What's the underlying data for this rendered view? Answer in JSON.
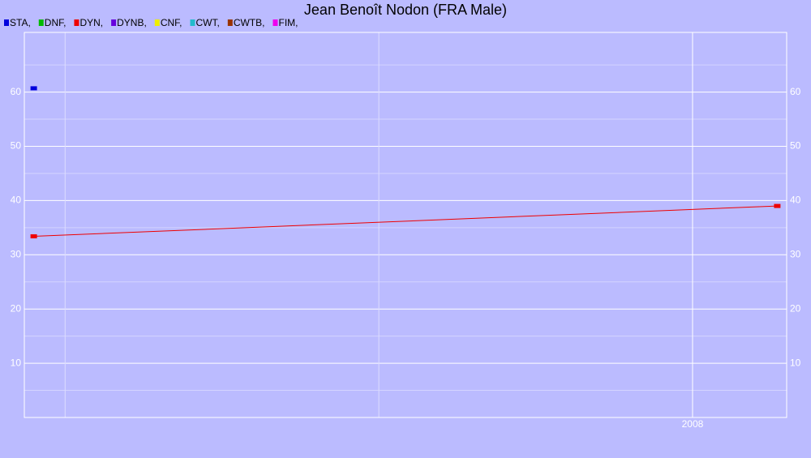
{
  "chart_data": {
    "type": "line",
    "title": "Jean Benoît Nodon (FRA Male)",
    "xlim": [
      2005.87,
      2008.3
    ],
    "xticks": [
      {
        "value": 2006,
        "label": null
      },
      {
        "value": 2007,
        "label": null
      },
      2008
    ],
    "ylim": [
      0,
      71
    ],
    "yticks": [
      10,
      20,
      30,
      40,
      50,
      60
    ],
    "minor_yticks": [
      5,
      15,
      25,
      35,
      45,
      55,
      65
    ],
    "grid": true,
    "legend": "top-left",
    "series": [
      {
        "name": "STA,",
        "color": "#0000dd",
        "x": [
          2005.9
        ],
        "values": [
          60.7
        ]
      },
      {
        "name": "DNF,",
        "color": "#00bb00",
        "x": [],
        "values": []
      },
      {
        "name": "DYN,",
        "color": "#ee0000",
        "x": [
          2005.9,
          2008.27
        ],
        "values": [
          33.4,
          39.0
        ]
      },
      {
        "name": "DYNB,",
        "color": "#6600dd",
        "x": [],
        "values": []
      },
      {
        "name": "CNF,",
        "color": "#eeee00",
        "x": [],
        "values": []
      },
      {
        "name": "CWT,",
        "color": "#22bbcc",
        "x": [],
        "values": []
      },
      {
        "name": "CWTB,",
        "color": "#993300",
        "x": [],
        "values": []
      },
      {
        "name": "FIM,",
        "color": "#ee00ee",
        "x": [],
        "values": []
      }
    ]
  }
}
